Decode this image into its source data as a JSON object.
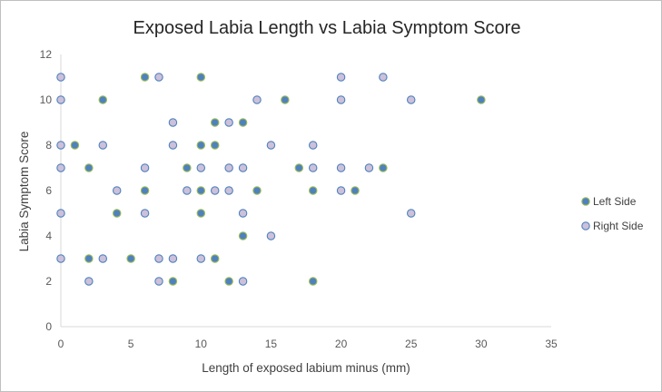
{
  "chart_data": {
    "type": "scatter",
    "title": "Exposed Labia Length vs Labia Symptom Score",
    "xlabel": "Length of exposed labium minus (mm)",
    "ylabel": "Labia Symptom Score",
    "xlim": [
      0,
      35
    ],
    "ylim": [
      0,
      12
    ],
    "xticks": [
      0,
      5,
      10,
      15,
      20,
      25,
      30,
      35
    ],
    "yticks": [
      0,
      2,
      4,
      6,
      8,
      10,
      12
    ],
    "grid": false,
    "legend_position": "right",
    "series": [
      {
        "name": "Left Side",
        "fill": "#4f81bd",
        "edge": "#9bbb59",
        "points": [
          [
            6,
            11
          ],
          [
            10,
            11
          ],
          [
            3,
            10
          ],
          [
            16,
            10
          ],
          [
            30,
            10
          ],
          [
            11,
            9
          ],
          [
            13,
            9
          ],
          [
            1,
            8
          ],
          [
            10,
            8
          ],
          [
            11,
            8
          ],
          [
            2,
            7
          ],
          [
            9,
            7
          ],
          [
            17,
            7
          ],
          [
            23,
            7
          ],
          [
            6,
            6
          ],
          [
            10,
            6
          ],
          [
            14,
            6
          ],
          [
            18,
            6
          ],
          [
            21,
            6
          ],
          [
            4,
            5
          ],
          [
            10,
            5
          ],
          [
            13,
            4
          ],
          [
            2,
            3
          ],
          [
            5,
            3
          ],
          [
            11,
            3
          ],
          [
            8,
            2
          ],
          [
            12,
            2
          ],
          [
            18,
            2
          ]
        ]
      },
      {
        "name": "Right Side",
        "fill": "#ccc0da",
        "edge": "#4f81bd",
        "points": [
          [
            0,
            11
          ],
          [
            7,
            11
          ],
          [
            20,
            11
          ],
          [
            23,
            11
          ],
          [
            0,
            10
          ],
          [
            14,
            10
          ],
          [
            20,
            10
          ],
          [
            25,
            10
          ],
          [
            8,
            9
          ],
          [
            12,
            9
          ],
          [
            0,
            8
          ],
          [
            3,
            8
          ],
          [
            8,
            8
          ],
          [
            15,
            8
          ],
          [
            18,
            8
          ],
          [
            0,
            7
          ],
          [
            6,
            7
          ],
          [
            10,
            7
          ],
          [
            12,
            7
          ],
          [
            13,
            7
          ],
          [
            18,
            7
          ],
          [
            20,
            7
          ],
          [
            22,
            7
          ],
          [
            4,
            6
          ],
          [
            9,
            6
          ],
          [
            11,
            6
          ],
          [
            12,
            6
          ],
          [
            20,
            6
          ],
          [
            0,
            5
          ],
          [
            6,
            5
          ],
          [
            13,
            5
          ],
          [
            25,
            5
          ],
          [
            15,
            4
          ],
          [
            0,
            3
          ],
          [
            3,
            3
          ],
          [
            7,
            3
          ],
          [
            8,
            3
          ],
          [
            10,
            3
          ],
          [
            2,
            2
          ],
          [
            7,
            2
          ],
          [
            13,
            2
          ]
        ]
      }
    ]
  }
}
